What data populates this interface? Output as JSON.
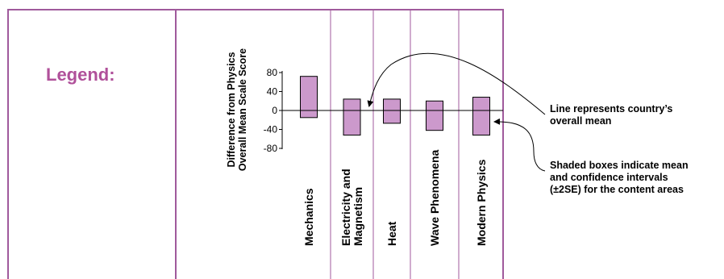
{
  "legend_title": "Legend:",
  "colors": {
    "frame": "#a05a9c",
    "box_fill": "#cc99cc",
    "box_stroke": "#000000",
    "legend_text": "#b0509a"
  },
  "chart_data": {
    "type": "bar",
    "ylabel_lines": [
      "Difference from Physics",
      "Overall Mean Scale Score"
    ],
    "ylim": [
      -80,
      80
    ],
    "yticks": [
      "80",
      "40",
      "0",
      "-40",
      "-80"
    ],
    "ytick_values": [
      80,
      40,
      0,
      -40,
      -80
    ],
    "categories": [
      {
        "lines": [
          "Mechanics"
        ],
        "low": -15,
        "high": 72
      },
      {
        "lines": [
          "Electricity and",
          "Magnetism"
        ],
        "low": -52,
        "high": 24
      },
      {
        "lines": [
          "Heat"
        ],
        "low": -27,
        "high": 24
      },
      {
        "lines": [
          "Wave Phenomena"
        ],
        "low": -42,
        "high": 20
      },
      {
        "lines": [
          "Modern Physics"
        ],
        "low": -52,
        "high": 28
      }
    ],
    "reference_line": 0
  },
  "annotations": {
    "line_note": [
      "Line represents country’s",
      "overall mean"
    ],
    "box_note": [
      "Shaded boxes indicate mean",
      "and confidence intervals",
      "(±2SE) for the content areas"
    ]
  }
}
